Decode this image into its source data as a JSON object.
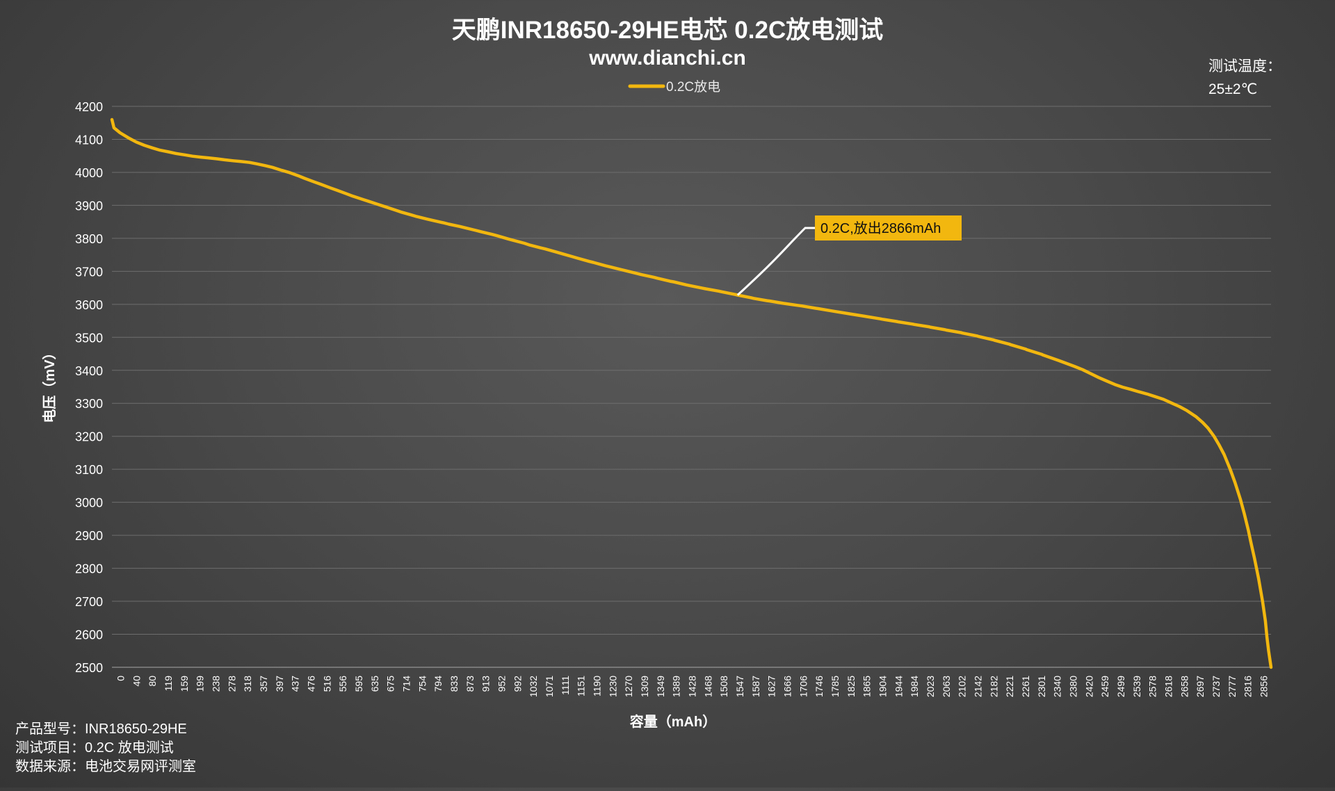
{
  "chart_data": {
    "type": "line",
    "title": "天鹏INR18650-29HE电芯 0.2C放电测试",
    "subtitle": "www.dianchi.cn",
    "xlabel": "容量（mAh）",
    "ylabel": "电压（mV）",
    "ylim": [
      2500,
      4200
    ],
    "yticks": [
      2500,
      2600,
      2700,
      2800,
      2900,
      3000,
      3100,
      3200,
      3300,
      3400,
      3500,
      3600,
      3700,
      3800,
      3900,
      4000,
      4100,
      4200
    ],
    "xlim": [
      0,
      2866
    ],
    "x_tick_labels": [
      "0",
      "40",
      "80",
      "119",
      "159",
      "199",
      "238",
      "278",
      "318",
      "357",
      "397",
      "437",
      "476",
      "516",
      "556",
      "595",
      "635",
      "675",
      "714",
      "754",
      "794",
      "833",
      "873",
      "913",
      "952",
      "992",
      "1032",
      "1071",
      "1111",
      "1151",
      "1190",
      "1230",
      "1270",
      "1309",
      "1349",
      "1389",
      "1428",
      "1468",
      "1508",
      "1547",
      "1587",
      "1627",
      "1666",
      "1706",
      "1746",
      "1785",
      "1825",
      "1865",
      "1904",
      "1944",
      "1984",
      "2023",
      "2063",
      "2102",
      "2142",
      "2182",
      "2221",
      "2261",
      "2301",
      "2340",
      "2380",
      "2420",
      "2459",
      "2499",
      "2539",
      "2578",
      "2618",
      "2658",
      "2697",
      "2737",
      "2777",
      "2816",
      "2856"
    ],
    "grid": true,
    "legend_position": "top-center",
    "series": [
      {
        "name": "0.2C放电",
        "color": "#F2B70F",
        "points": [
          [
            0,
            4160
          ],
          [
            5,
            4135
          ],
          [
            20,
            4120
          ],
          [
            40,
            4105
          ],
          [
            60,
            4092
          ],
          [
            80,
            4082
          ],
          [
            100,
            4074
          ],
          [
            119,
            4067
          ],
          [
            140,
            4062
          ],
          [
            159,
            4057
          ],
          [
            180,
            4053
          ],
          [
            199,
            4049
          ],
          [
            220,
            4046
          ],
          [
            238,
            4044
          ],
          [
            260,
            4041
          ],
          [
            278,
            4038
          ],
          [
            300,
            4035
          ],
          [
            318,
            4033
          ],
          [
            340,
            4030
          ],
          [
            357,
            4026
          ],
          [
            380,
            4020
          ],
          [
            397,
            4015
          ],
          [
            420,
            4006
          ],
          [
            437,
            4000
          ],
          [
            460,
            3990
          ],
          [
            476,
            3982
          ],
          [
            500,
            3971
          ],
          [
            516,
            3964
          ],
          [
            540,
            3953
          ],
          [
            556,
            3946
          ],
          [
            580,
            3935
          ],
          [
            595,
            3928
          ],
          [
            620,
            3918
          ],
          [
            635,
            3912
          ],
          [
            660,
            3902
          ],
          [
            675,
            3896
          ],
          [
            700,
            3886
          ],
          [
            714,
            3880
          ],
          [
            740,
            3871
          ],
          [
            754,
            3866
          ],
          [
            780,
            3858
          ],
          [
            794,
            3854
          ],
          [
            820,
            3847
          ],
          [
            833,
            3843
          ],
          [
            860,
            3836
          ],
          [
            873,
            3832
          ],
          [
            900,
            3824
          ],
          [
            913,
            3820
          ],
          [
            940,
            3812
          ],
          [
            952,
            3808
          ],
          [
            980,
            3798
          ],
          [
            992,
            3794
          ],
          [
            1020,
            3785
          ],
          [
            1032,
            3780
          ],
          [
            1060,
            3771
          ],
          [
            1071,
            3768
          ],
          [
            1100,
            3758
          ],
          [
            1111,
            3754
          ],
          [
            1140,
            3744
          ],
          [
            1151,
            3740
          ],
          [
            1180,
            3730
          ],
          [
            1190,
            3727
          ],
          [
            1220,
            3717
          ],
          [
            1230,
            3714
          ],
          [
            1260,
            3705
          ],
          [
            1270,
            3702
          ],
          [
            1300,
            3693
          ],
          [
            1309,
            3690
          ],
          [
            1340,
            3682
          ],
          [
            1349,
            3679
          ],
          [
            1380,
            3670
          ],
          [
            1389,
            3668
          ],
          [
            1420,
            3659
          ],
          [
            1428,
            3657
          ],
          [
            1460,
            3649
          ],
          [
            1468,
            3647
          ],
          [
            1500,
            3640
          ],
          [
            1508,
            3638
          ],
          [
            1540,
            3630
          ],
          [
            1547,
            3628
          ],
          [
            1580,
            3620
          ],
          [
            1587,
            3618
          ],
          [
            1620,
            3611
          ],
          [
            1627,
            3610
          ],
          [
            1660,
            3603
          ],
          [
            1666,
            3602
          ],
          [
            1700,
            3596
          ],
          [
            1706,
            3595
          ],
          [
            1740,
            3588
          ],
          [
            1746,
            3587
          ],
          [
            1780,
            3580
          ],
          [
            1785,
            3579
          ],
          [
            1820,
            3572
          ],
          [
            1825,
            3571
          ],
          [
            1860,
            3564
          ],
          [
            1865,
            3563
          ],
          [
            1900,
            3556
          ],
          [
            1904,
            3555
          ],
          [
            1940,
            3548
          ],
          [
            1944,
            3547
          ],
          [
            1980,
            3540
          ],
          [
            1984,
            3539
          ],
          [
            2020,
            3532
          ],
          [
            2023,
            3531
          ],
          [
            2060,
            3523
          ],
          [
            2063,
            3522
          ],
          [
            2100,
            3514
          ],
          [
            2102,
            3513
          ],
          [
            2140,
            3504
          ],
          [
            2142,
            3503
          ],
          [
            2180,
            3492
          ],
          [
            2182,
            3491
          ],
          [
            2220,
            3479
          ],
          [
            2221,
            3478
          ],
          [
            2260,
            3464
          ],
          [
            2261,
            3463
          ],
          [
            2300,
            3448
          ],
          [
            2301,
            3447
          ],
          [
            2340,
            3430
          ],
          [
            2380,
            3412
          ],
          [
            2400,
            3402
          ],
          [
            2420,
            3390
          ],
          [
            2440,
            3378
          ],
          [
            2459,
            3368
          ],
          [
            2480,
            3357
          ],
          [
            2499,
            3349
          ],
          [
            2520,
            3342
          ],
          [
            2539,
            3335
          ],
          [
            2560,
            3328
          ],
          [
            2578,
            3321
          ],
          [
            2600,
            3312
          ],
          [
            2618,
            3302
          ],
          [
            2640,
            3290
          ],
          [
            2658,
            3278
          ],
          [
            2680,
            3260
          ],
          [
            2697,
            3242
          ],
          [
            2710,
            3225
          ],
          [
            2725,
            3200
          ],
          [
            2737,
            3175
          ],
          [
            2750,
            3145
          ],
          [
            2765,
            3100
          ],
          [
            2777,
            3060
          ],
          [
            2790,
            3010
          ],
          [
            2800,
            2965
          ],
          [
            2810,
            2915
          ],
          [
            2816,
            2880
          ],
          [
            2825,
            2830
          ],
          [
            2835,
            2770
          ],
          [
            2845,
            2700
          ],
          [
            2852,
            2640
          ],
          [
            2856,
            2590
          ],
          [
            2860,
            2550
          ],
          [
            2866,
            2500
          ]
        ]
      }
    ],
    "annotations": [
      {
        "text": "0.2C,放出2866mAh",
        "anchor": [
          1547,
          3628
        ]
      }
    ]
  },
  "temperature": {
    "label": "测试温度：",
    "value": "25±2℃"
  },
  "info": {
    "line1": "产品型号：INR18650-29HE",
    "line2": "测试项目：0.2C 放电测试",
    "line3": "数据来源：电池交易网评测室"
  }
}
